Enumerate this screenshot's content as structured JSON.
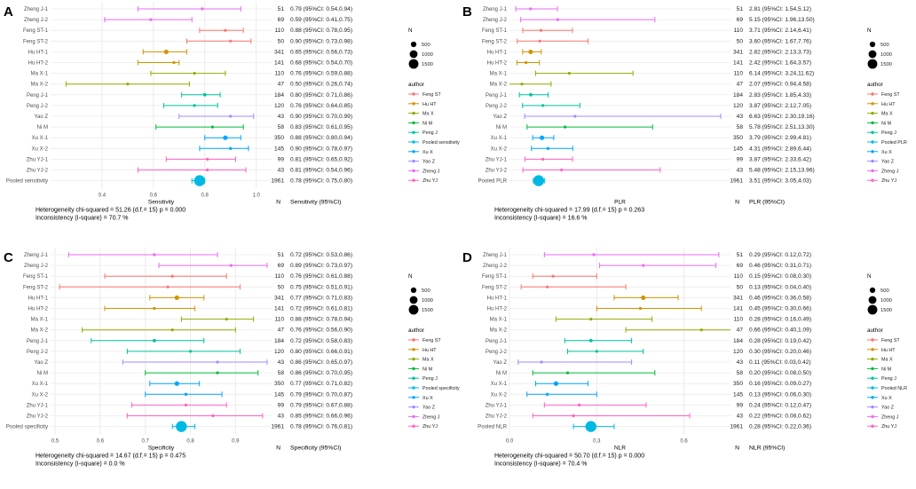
{
  "colors": {
    "Feng ST": "#F8766D",
    "Hu HT": "#D39200",
    "Ma X": "#93AA00",
    "Ni M": "#00BA38",
    "Peng J": "#00C19F",
    "Pooled": "#00B9E3",
    "Xu X": "#00A5FF",
    "Yao Z": "#A58AFF",
    "Zheng J": "#E76BF3",
    "Zhu YJ": "#FF61C3",
    "grid": "#ebebeb",
    "text": "#333333"
  },
  "chart_data": [
    {
      "type": "scatter",
      "panel": "A",
      "metric": "Sensitivity",
      "xlabel": "Sensitivity",
      "xlim": [
        0.2,
        1.06
      ],
      "xticks": [
        "0.4",
        "0.6",
        "0.8",
        "1.0"
      ],
      "xtick_values": [
        0.4,
        0.6,
        0.8,
        1.0
      ],
      "table_header_n": "N",
      "table_header_ci": "Sensitivity (95%CI)",
      "heterogeneity": "Heterogeneity chi-squared = 51.26 (d.f.= 15) p = 0.000",
      "inconsistency": "Inconsistency (I-square) = 70.7 %",
      "pooled_label": "Pooled sensitivity",
      "studies": [
        {
          "label": "Zheng J-1",
          "author": "Zheng J",
          "est": 0.79,
          "lo": 0.54,
          "hi": 0.94,
          "n": 51,
          "text": "0.79 (95%CI: 0.54,0.94)"
        },
        {
          "label": "Zheng J-2",
          "author": "Zheng J",
          "est": 0.59,
          "lo": 0.41,
          "hi": 0.75,
          "n": 69,
          "text": "0.59 (95%CI: 0.41,0.75)"
        },
        {
          "label": "Feng ST-1",
          "author": "Feng ST",
          "est": 0.88,
          "lo": 0.78,
          "hi": 0.95,
          "n": 110,
          "text": "0.88 (95%CI: 0.78,0.95)"
        },
        {
          "label": "Feng ST-2",
          "author": "Feng ST",
          "est": 0.9,
          "lo": 0.73,
          "hi": 0.98,
          "n": 50,
          "text": "0.90 (95%CI: 0.73,0.98)"
        },
        {
          "label": "Hu HT-1",
          "author": "Hu HT",
          "est": 0.65,
          "lo": 0.56,
          "hi": 0.73,
          "n": 341,
          "text": "0.65 (95%CI: 0.56,0.73)"
        },
        {
          "label": "Hu HT-2",
          "author": "Hu HT",
          "est": 0.68,
          "lo": 0.54,
          "hi": 0.7,
          "n": 141,
          "text": "0.68 (95%CI: 0.54,0.70)"
        },
        {
          "label": "Ma X-1",
          "author": "Ma X",
          "est": 0.76,
          "lo": 0.59,
          "hi": 0.88,
          "n": 110,
          "text": "0.76 (95%CI: 0.59,0.88)"
        },
        {
          "label": "Ma X-2",
          "author": "Ma X",
          "est": 0.5,
          "lo": 0.26,
          "hi": 0.74,
          "n": 47,
          "text": "0.50 (95%CI: 0.26,0.74)"
        },
        {
          "label": "Peng J-1",
          "author": "Peng J",
          "est": 0.8,
          "lo": 0.71,
          "hi": 0.86,
          "n": 184,
          "text": "0.80 (95%CI: 0.71,0.86)"
        },
        {
          "label": "Peng J-2",
          "author": "Peng J",
          "est": 0.76,
          "lo": 0.64,
          "hi": 0.85,
          "n": 120,
          "text": "0.76 (95%CI: 0.64,0.85)"
        },
        {
          "label": "Yao Z",
          "author": "Yao Z",
          "est": 0.9,
          "lo": 0.7,
          "hi": 0.99,
          "n": 43,
          "text": "0.90 (95%CI: 0.70,0.99)"
        },
        {
          "label": "Ni M",
          "author": "Ni M",
          "est": 0.83,
          "lo": 0.61,
          "hi": 0.95,
          "n": 58,
          "text": "0.83 (95%CI: 0.61,0.95)"
        },
        {
          "label": "Xu X-1",
          "author": "Xu X",
          "est": 0.88,
          "lo": 0.8,
          "hi": 0.94,
          "n": 350,
          "text": "0.88 (95%CI: 0.80,0.94)"
        },
        {
          "label": "Xu X-2",
          "author": "Xu X",
          "est": 0.9,
          "lo": 0.78,
          "hi": 0.97,
          "n": 145,
          "text": "0.90 (95%CI: 0.78,0.97)"
        },
        {
          "label": "Zhu YJ-1",
          "author": "Zhu YJ",
          "est": 0.81,
          "lo": 0.65,
          "hi": 0.92,
          "n": 99,
          "text": "0.81 (95%CI: 0.65,0.92)"
        },
        {
          "label": "Zhu YJ-2",
          "author": "Zhu YJ",
          "est": 0.81,
          "lo": 0.54,
          "hi": 0.96,
          "n": 43,
          "text": "0.81 (95%CI: 0.54,0.96)"
        },
        {
          "label": "Pooled sensitivity",
          "author": "Pooled",
          "est": 0.78,
          "lo": 0.75,
          "hi": 0.8,
          "n": 1961,
          "text": "0.78 (95%CI: 0.75,0.80)",
          "pooled": true
        }
      ],
      "legend_title_size": "N",
      "legend_sizes": [
        "500",
        "1000",
        "1500"
      ],
      "legend_size_values": [
        500,
        1000,
        1500
      ],
      "legend_title_author": "author",
      "legend_authors": [
        "Feng ST",
        "Hu HT",
        "Ma X",
        "Ni M",
        "Peng J",
        "Pooled sensitivity",
        "Xu X",
        "Yao Z",
        "Zheng J",
        "Zhu YJ"
      ]
    },
    {
      "type": "scatter",
      "panel": "B",
      "metric": "PLR",
      "xlabel": "PLR",
      "xlim": [
        1.0,
        20.0
      ],
      "xticks": [],
      "xtick_values": [],
      "table_header_n": "N",
      "table_header_ci": "PLR (95%CI)",
      "heterogeneity": "Heterogeneity chi-squared = 17.99 (d.f.= 15) p = 0.263",
      "inconsistency": "Inconsistency (I-square) = 16.6 %",
      "pooled_label": "Pooled PLR",
      "studies": [
        {
          "label": "Zheng J-1",
          "author": "Zheng J",
          "est": 2.81,
          "lo": 1.54,
          "hi": 5.12,
          "n": 51,
          "text": "2.81 (95%CI: 1.54,5.12)"
        },
        {
          "label": "Zheng J-2",
          "author": "Zheng J",
          "est": 5.15,
          "lo": 1.96,
          "hi": 13.5,
          "n": 69,
          "text": "5.15 (95%CI: 1.96,13.50)"
        },
        {
          "label": "Feng ST-1",
          "author": "Feng ST",
          "est": 3.71,
          "lo": 2.14,
          "hi": 6.41,
          "n": 110,
          "text": "3.71 (95%CI: 2.14,6.41)"
        },
        {
          "label": "Feng ST-2",
          "author": "Feng ST",
          "est": 3.6,
          "lo": 1.67,
          "hi": 7.76,
          "n": 50,
          "text": "3.60 (95%CI: 1.67,7.76)"
        },
        {
          "label": "Hu HT-1",
          "author": "Hu HT",
          "est": 2.82,
          "lo": 2.13,
          "hi": 3.73,
          "n": 341,
          "text": "2.82 (95%CI: 2.13,3.73)"
        },
        {
          "label": "Hu HT-2",
          "author": "Hu HT",
          "est": 2.42,
          "lo": 1.64,
          "hi": 3.57,
          "n": 141,
          "text": "2.42 (95%CI: 1.64,3.57)"
        },
        {
          "label": "Ma X-1",
          "author": "Ma X",
          "est": 6.14,
          "lo": 3.24,
          "hi": 11.62,
          "n": 110,
          "text": "6.14 (95%CI: 3.24,11.62)"
        },
        {
          "label": "Ma X-2",
          "author": "Ma X",
          "est": 2.07,
          "lo": 0.94,
          "hi": 4.58,
          "n": 47,
          "text": "2.07 (95%CI: 0.94,4.58)"
        },
        {
          "label": "Peng J-1",
          "author": "Peng J",
          "est": 2.83,
          "lo": 1.85,
          "hi": 4.33,
          "n": 184,
          "text": "2.83 (95%CI: 1.85,4.33)"
        },
        {
          "label": "Peng J-2",
          "author": "Peng J",
          "est": 3.87,
          "lo": 2.12,
          "hi": 7.05,
          "n": 120,
          "text": "3.87 (95%CI: 2.12,7.05)"
        },
        {
          "label": "Yao Z",
          "author": "Yao Z",
          "est": 6.63,
          "lo": 2.3,
          "hi": 19.16,
          "n": 43,
          "text": "6.63 (95%CI: 2.30,19.16)"
        },
        {
          "label": "Ni M",
          "author": "Ni M",
          "est": 5.78,
          "lo": 2.51,
          "hi": 13.3,
          "n": 58,
          "text": "5.78 (95%CI: 2.51,13.30)"
        },
        {
          "label": "Xu X-1",
          "author": "Xu X",
          "est": 3.79,
          "lo": 2.99,
          "hi": 4.81,
          "n": 350,
          "text": "3.79 (95%CI: 2.99,4.81)"
        },
        {
          "label": "Xu X-2",
          "author": "Xu X",
          "est": 4.31,
          "lo": 2.89,
          "hi": 6.44,
          "n": 145,
          "text": "4.31 (95%CI: 2.89,6.44)"
        },
        {
          "label": "Zhu YJ-1",
          "author": "Zhu YJ",
          "est": 3.87,
          "lo": 2.33,
          "hi": 6.42,
          "n": 99,
          "text": "3.87 (95%CI: 2.33,6.42)"
        },
        {
          "label": "Zhu YJ-2",
          "author": "Zhu YJ",
          "est": 5.48,
          "lo": 2.15,
          "hi": 13.96,
          "n": 43,
          "text": "5.48 (95%CI: 2.15,13.96)"
        },
        {
          "label": "Pooled PLR",
          "author": "Pooled",
          "est": 3.51,
          "lo": 3.05,
          "hi": 4.03,
          "n": 1961,
          "text": "3.51 (95%CI: 3.05,4.03)",
          "pooled": true
        }
      ],
      "legend_title_size": "N",
      "legend_sizes": [
        "500",
        "1000",
        "1500"
      ],
      "legend_size_values": [
        500,
        1000,
        1500
      ],
      "legend_title_author": "author",
      "legend_authors": [
        "Feng ST",
        "Hu HT",
        "Ma X",
        "Ni M",
        "Peng J",
        "Pooled PLR",
        "Xu X",
        "Yao Z",
        "Zheng J",
        "Zhu YJ"
      ]
    },
    {
      "type": "scatter",
      "panel": "C",
      "metric": "Specificity",
      "xlabel": "Specificity",
      "xlim": [
        0.49,
        0.98
      ],
      "xticks": [
        "0.5",
        "0.6",
        "0.7",
        "0.8",
        "0.9"
      ],
      "xtick_values": [
        0.5,
        0.6,
        0.7,
        0.8,
        0.9
      ],
      "table_header_n": "N",
      "table_header_ci": "Specificity (95%CI)",
      "heterogeneity": "Heterogeneity chi-squared = 14.67 (d.f.= 15) p = 0.475",
      "inconsistency": "Inconsistency (I-square) = 0.0 %",
      "pooled_label": "Pooled specificity",
      "studies": [
        {
          "label": "Zheng J-1",
          "author": "Zheng J",
          "est": 0.72,
          "lo": 0.53,
          "hi": 0.86,
          "n": 51,
          "text": "0.72 (95%CI: 0.53,0.86)"
        },
        {
          "label": "Zheng J-2",
          "author": "Zheng J",
          "est": 0.89,
          "lo": 0.73,
          "hi": 0.97,
          "n": 69,
          "text": "0.89 (95%CI: 0.73,0.97)"
        },
        {
          "label": "Feng ST-1",
          "author": "Feng ST",
          "est": 0.76,
          "lo": 0.61,
          "hi": 0.88,
          "n": 110,
          "text": "0.76 (95%CI: 0.61,0.88)"
        },
        {
          "label": "Feng ST-2",
          "author": "Feng ST",
          "est": 0.75,
          "lo": 0.51,
          "hi": 0.91,
          "n": 50,
          "text": "0.75 (95%CI: 0.51,0.91)"
        },
        {
          "label": "Hu HT-1",
          "author": "Hu HT",
          "est": 0.77,
          "lo": 0.71,
          "hi": 0.83,
          "n": 341,
          "text": "0.77 (95%CI: 0.71,0.83)"
        },
        {
          "label": "Hu HT-2",
          "author": "Hu HT",
          "est": 0.72,
          "lo": 0.61,
          "hi": 0.81,
          "n": 141,
          "text": "0.72 (95%CI: 0.61,0.81)"
        },
        {
          "label": "Ma X-1",
          "author": "Ma X",
          "est": 0.88,
          "lo": 0.78,
          "hi": 0.94,
          "n": 110,
          "text": "0.88 (95%CI: 0.78,0.94)"
        },
        {
          "label": "Ma X-2",
          "author": "Ma X",
          "est": 0.76,
          "lo": 0.56,
          "hi": 0.9,
          "n": 47,
          "text": "0.76 (95%CI: 0.56,0.90)"
        },
        {
          "label": "Peng J-1",
          "author": "Peng J",
          "est": 0.72,
          "lo": 0.58,
          "hi": 0.83,
          "n": 184,
          "text": "0.72 (95%CI: 0.58,0.83)"
        },
        {
          "label": "Peng J-2",
          "author": "Peng J",
          "est": 0.8,
          "lo": 0.66,
          "hi": 0.91,
          "n": 120,
          "text": "0.80 (95%CI: 0.66,0.91)"
        },
        {
          "label": "Yao Z",
          "author": "Yao Z",
          "est": 0.86,
          "lo": 0.65,
          "hi": 0.97,
          "n": 43,
          "text": "0.86 (95%CI: 0.65,0.97)"
        },
        {
          "label": "Ni M",
          "author": "Ni M",
          "est": 0.86,
          "lo": 0.7,
          "hi": 0.95,
          "n": 58,
          "text": "0.86 (95%CI: 0.70,0.95)"
        },
        {
          "label": "Xu X-1",
          "author": "Xu X",
          "est": 0.77,
          "lo": 0.71,
          "hi": 0.82,
          "n": 350,
          "text": "0.77 (95%CI: 0.71,0.82)"
        },
        {
          "label": "Xu X-2",
          "author": "Xu X",
          "est": 0.79,
          "lo": 0.7,
          "hi": 0.87,
          "n": 145,
          "text": "0.79 (95%CI: 0.70,0.87)"
        },
        {
          "label": "Zhu YJ-1",
          "author": "Zhu YJ",
          "est": 0.79,
          "lo": 0.67,
          "hi": 0.88,
          "n": 99,
          "text": "0.79 (95%CI: 0.67,0.88)"
        },
        {
          "label": "Zhu YJ-2",
          "author": "Zhu YJ",
          "est": 0.85,
          "lo": 0.66,
          "hi": 0.96,
          "n": 43,
          "text": "0.85 (95%CI: 0.66,0.96)"
        },
        {
          "label": "Pooled specificity",
          "author": "Pooled",
          "est": 0.78,
          "lo": 0.76,
          "hi": 0.81,
          "n": 1961,
          "text": "0.78 (95%CI: 0.76,0.81)",
          "pooled": true
        }
      ],
      "legend_title_size": "N",
      "legend_sizes": [
        "500",
        "1000",
        "1500"
      ],
      "legend_size_values": [
        500,
        1000,
        1500
      ],
      "legend_title_author": "author",
      "legend_authors": [
        "Feng ST",
        "Hu HT",
        "Ma X",
        "Ni M",
        "Peng J",
        "Pooled specificity",
        "Xu X",
        "Yao Z",
        "Zheng J",
        "Zhu YJ"
      ]
    },
    {
      "type": "scatter",
      "panel": "D",
      "metric": "NLR",
      "xlabel": "NLR",
      "xlim": [
        0.0,
        0.76
      ],
      "xticks": [
        "0.0",
        "0.3",
        "0.6"
      ],
      "xtick_values": [
        0.0,
        0.3,
        0.6
      ],
      "table_header_n": "N",
      "table_header_ci": "NLR (95%CI)",
      "heterogeneity": "Heterogeneity chi-squared = 50.70 (d.f.= 15) p = 0.000",
      "inconsistency": "Inconsistency (I-square) = 70.4 %",
      "pooled_label": "Pooled NLR",
      "studies": [
        {
          "label": "Zheng J-1",
          "author": "Zheng J",
          "est": 0.29,
          "lo": 0.12,
          "hi": 0.72,
          "n": 51,
          "text": "0.29 (95%CI: 0.12,0.72)"
        },
        {
          "label": "Zheng J-2",
          "author": "Zheng J",
          "est": 0.46,
          "lo": 0.31,
          "hi": 0.71,
          "n": 69,
          "text": "0.46 (95%CI: 0.31,0.71)"
        },
        {
          "label": "Feng ST-1",
          "author": "Feng ST",
          "est": 0.15,
          "lo": 0.08,
          "hi": 0.3,
          "n": 110,
          "text": "0.15 (95%CI: 0.08,0.30)"
        },
        {
          "label": "Feng ST-2",
          "author": "Feng ST",
          "est": 0.13,
          "lo": 0.04,
          "hi": 0.4,
          "n": 50,
          "text": "0.13 (95%CI: 0.04,0.40)"
        },
        {
          "label": "Hu HT-1",
          "author": "Hu HT",
          "est": 0.46,
          "lo": 0.36,
          "hi": 0.58,
          "n": 341,
          "text": "0.46 (95%CI: 0.36,0.58)"
        },
        {
          "label": "Hu HT-2",
          "author": "Hu HT",
          "est": 0.45,
          "lo": 0.3,
          "hi": 0.66,
          "n": 141,
          "text": "0.45 (95%CI: 0.30,0.66)"
        },
        {
          "label": "Ma X-1",
          "author": "Ma X",
          "est": 0.28,
          "lo": 0.16,
          "hi": 0.49,
          "n": 110,
          "text": "0.28 (95%CI: 0.16,0.49)"
        },
        {
          "label": "Ma X-2",
          "author": "Ma X",
          "est": 0.66,
          "lo": 0.4,
          "hi": 1.09,
          "n": 47,
          "text": "0.66 (95%CI: 0.40,1.09)"
        },
        {
          "label": "Peng J-1",
          "author": "Peng J",
          "est": 0.28,
          "lo": 0.19,
          "hi": 0.42,
          "n": 184,
          "text": "0.28 (95%CI: 0.19,0.42)"
        },
        {
          "label": "Peng J-2",
          "author": "Peng J",
          "est": 0.3,
          "lo": 0.2,
          "hi": 0.46,
          "n": 120,
          "text": "0.30 (95%CI: 0.20,0.46)"
        },
        {
          "label": "Yao Z",
          "author": "Yao Z",
          "est": 0.11,
          "lo": 0.03,
          "hi": 0.42,
          "n": 43,
          "text": "0.11 (95%CI: 0.03,0.42)"
        },
        {
          "label": "Ni M",
          "author": "Ni M",
          "est": 0.2,
          "lo": 0.08,
          "hi": 0.5,
          "n": 58,
          "text": "0.20 (95%CI: 0.08,0.50)"
        },
        {
          "label": "Xu X-1",
          "author": "Xu X",
          "est": 0.16,
          "lo": 0.09,
          "hi": 0.27,
          "n": 350,
          "text": "0.16 (95%CI: 0.09,0.27)"
        },
        {
          "label": "Xu X-2",
          "author": "Xu X",
          "est": 0.13,
          "lo": 0.06,
          "hi": 0.3,
          "n": 145,
          "text": "0.13 (95%CI: 0.06,0.30)"
        },
        {
          "label": "Zhu YJ-1",
          "author": "Zhu YJ",
          "est": 0.24,
          "lo": 0.12,
          "hi": 0.47,
          "n": 99,
          "text": "0.24 (95%CI: 0.12,0.47)"
        },
        {
          "label": "Zhu YJ-2",
          "author": "Zhu YJ",
          "est": 0.22,
          "lo": 0.08,
          "hi": 0.62,
          "n": 43,
          "text": "0.22 (95%CI: 0.08,0.62)"
        },
        {
          "label": "Pooled NLR",
          "author": "Pooled",
          "est": 0.28,
          "lo": 0.22,
          "hi": 0.36,
          "n": 1961,
          "text": "0.28 (95%CI: 0.22,0.36)",
          "pooled": true
        }
      ],
      "legend_title_size": "N",
      "legend_sizes": [
        "500",
        "1000",
        "1500"
      ],
      "legend_size_values": [
        500,
        1000,
        1500
      ],
      "legend_title_author": "author",
      "legend_authors": [
        "Feng ST",
        "Hu HT",
        "Ma X",
        "Ni M",
        "Peng J",
        "Pooled NLR",
        "Xu X",
        "Yao Z",
        "Zheng J",
        "Zhu YJ"
      ]
    }
  ]
}
